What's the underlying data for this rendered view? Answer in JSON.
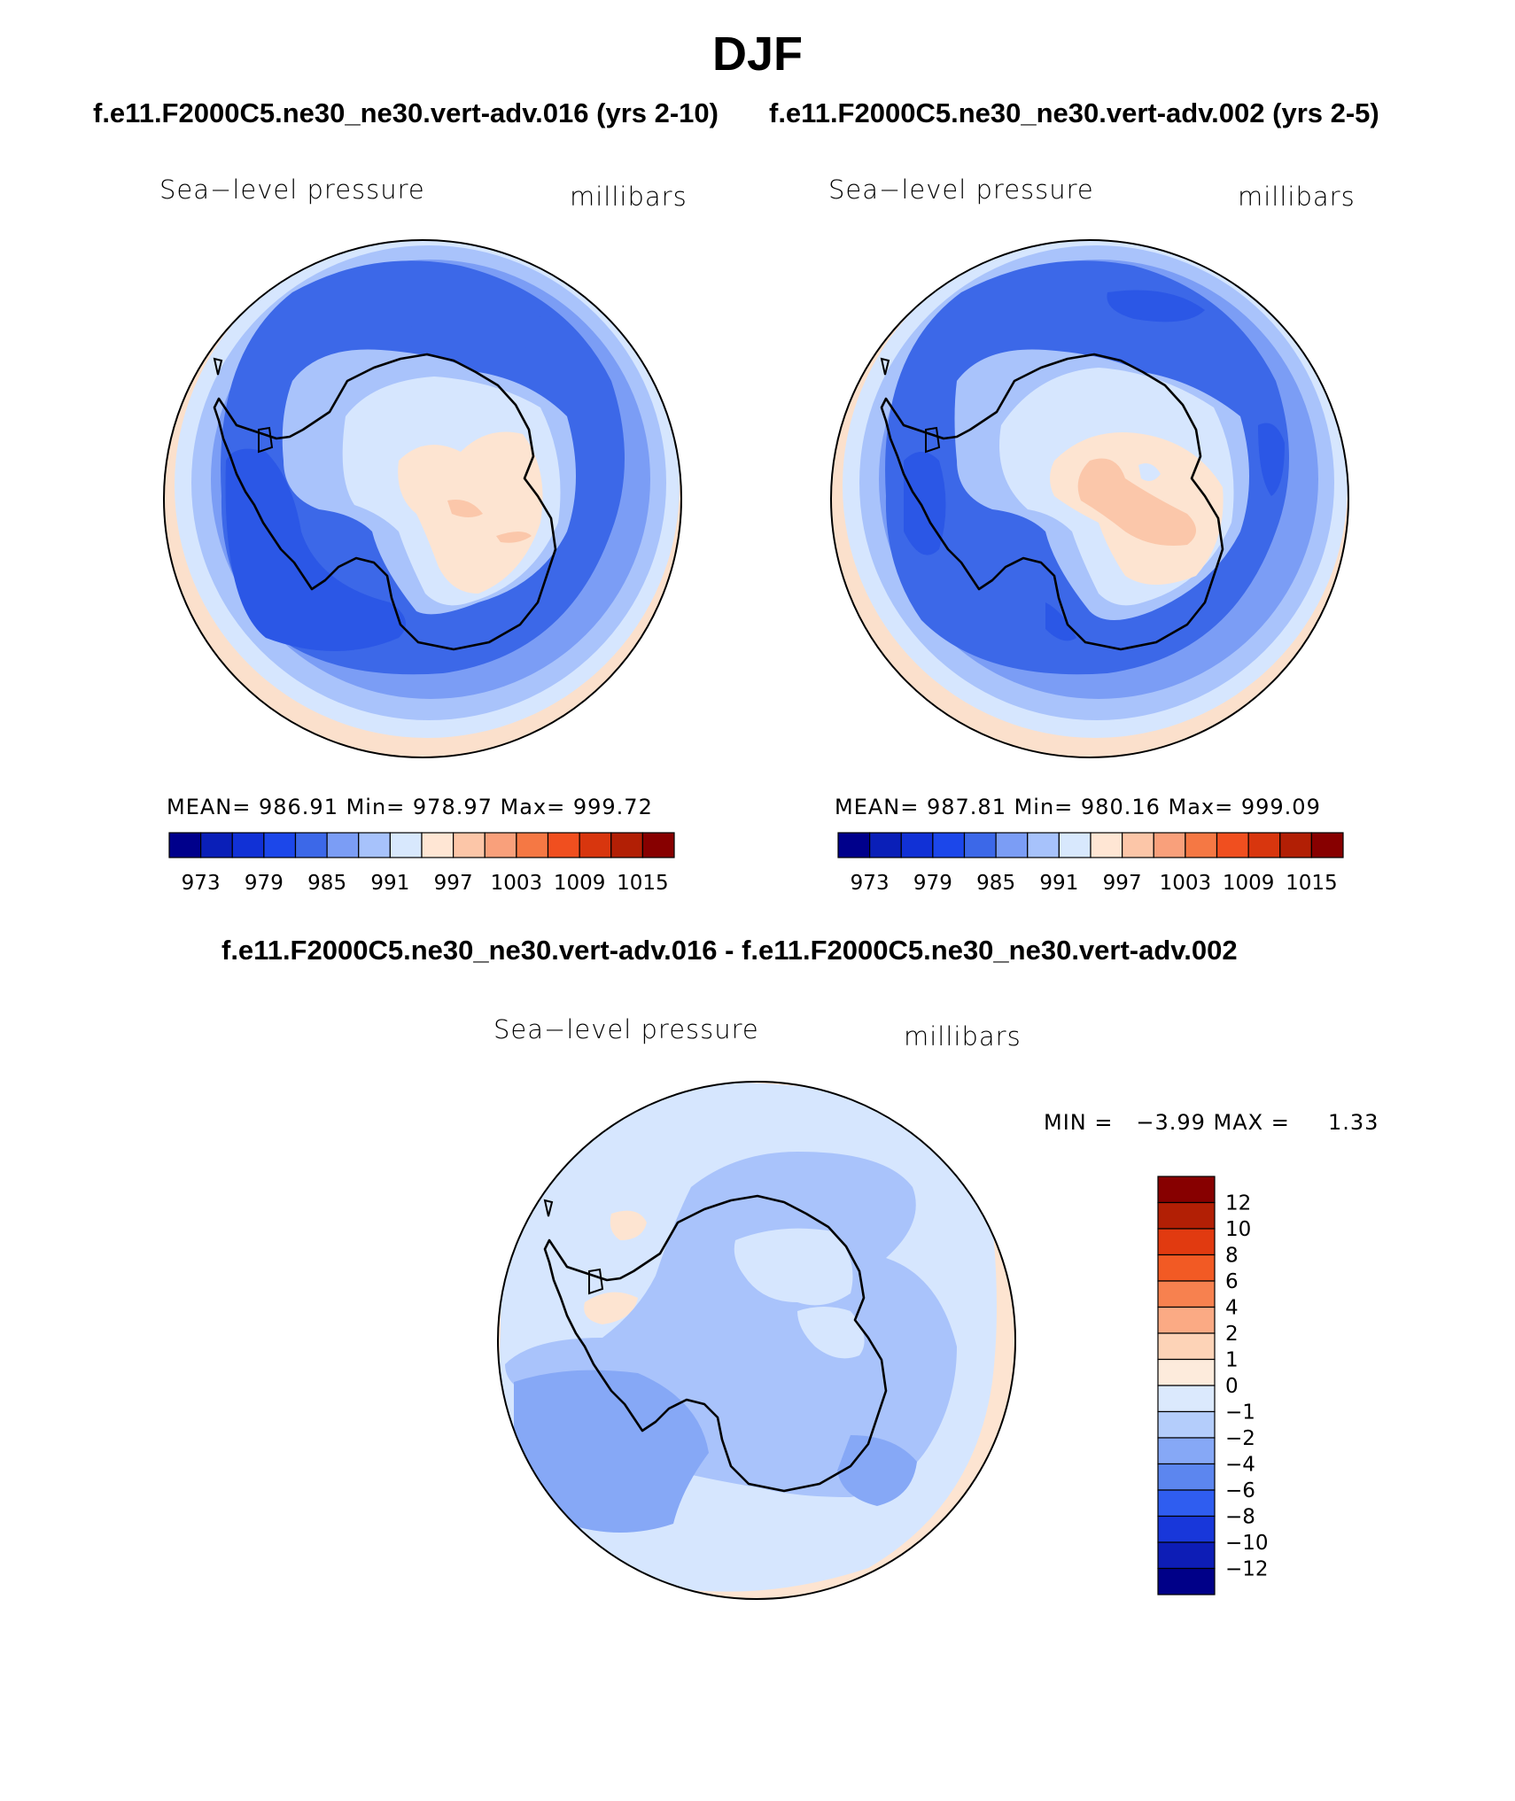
{
  "page": {
    "title": "DJF",
    "left_case": "f.e11.F2000C5.ne30_ne30.vert-adv.016 (yrs 2-10)",
    "right_case": "f.e11.F2000C5.ne30_ne30.vert-adv.002 (yrs 2-5)",
    "diff_title": "f.e11.F2000C5.ne30_ne30.vert-adv.016 - f.e11.F2000C5.ne30_ne30.vert-adv.002"
  },
  "panels": [
    {
      "variable": "Sea−level pressure",
      "units": "millibars",
      "stats": "MEAN= 986.91   Min= 978.97   Max= 999.72"
    },
    {
      "variable": "Sea−level pressure",
      "units": "millibars",
      "stats": "MEAN= 987.81   Min= 980.16   Max= 999.09"
    }
  ],
  "diff_panel": {
    "variable": "Sea−level pressure",
    "units": "millibars",
    "stats": "MIN =   −3.99 MAX =     1.33"
  },
  "colorbar_main": {
    "colors": [
      "#00008b",
      "#0a1fb8",
      "#1131d6",
      "#1c47ea",
      "#3c68e8",
      "#7b9df5",
      "#a7c2fb",
      "#d8e8fd",
      "#ffe6d4",
      "#fcc6a8",
      "#f9a07b",
      "#f57844",
      "#f04f1f",
      "#d8360e",
      "#b21f05",
      "#870000"
    ],
    "tick_labels": [
      "973",
      "979",
      "985",
      "991",
      "997",
      "1003",
      "1009",
      "1015"
    ]
  },
  "colorbar_diff": {
    "colors_top_to_bottom": [
      "#870000",
      "#b21f05",
      "#e13a10",
      "#f25a24",
      "#f7814f",
      "#fbaa84",
      "#fdd3b7",
      "#fdebdc",
      "#dbe9fd",
      "#b4cdfb",
      "#86a8f6",
      "#5c86ef",
      "#2f5df0",
      "#1837da",
      "#0d1db6",
      "#000088"
    ],
    "tick_labels": [
      "12",
      "10",
      "8",
      "6",
      "4",
      "2",
      "1",
      "0",
      "−1",
      "−2",
      "−4",
      "−6",
      "−8",
      "−10",
      "−12"
    ]
  },
  "legend_hex": {
    "deep_blue": "#2b57e6",
    "mid_blue": "#5b86ee",
    "light_blue": "#a9c3fb",
    "pale_blue": "#d6e6fe",
    "pale_orange": "#fde4d1",
    "peach": "#fbc7aa",
    "coastline": "#000000"
  }
}
